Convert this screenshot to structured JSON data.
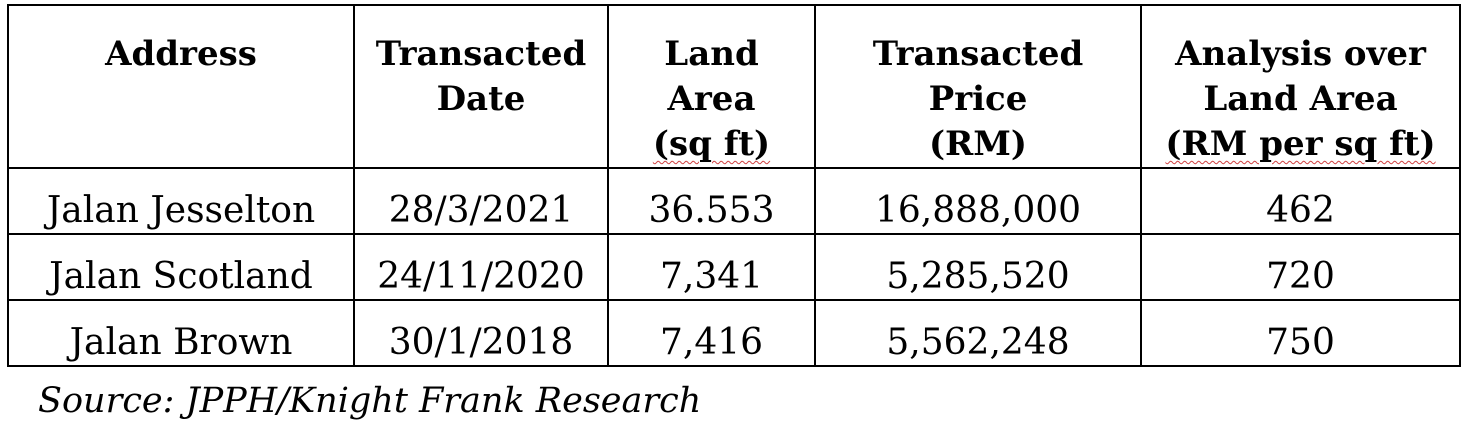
{
  "table": {
    "headers": [
      [
        "Address"
      ],
      [
        "Transacted",
        "Date"
      ],
      [
        "Land",
        "Area",
        "(sq ft)"
      ],
      [
        "Transacted",
        "Price",
        "(RM)"
      ],
      [
        "Analysis over",
        "Land Area",
        "(RM per sq ft)"
      ]
    ],
    "rows": [
      [
        "Jalan Jesselton",
        "28/3/2021",
        "36.553",
        "16,888,000",
        "462"
      ],
      [
        "Jalan Scotland",
        "24/11/2020",
        "7,341",
        "5,285,520",
        "720"
      ],
      [
        "Jalan Brown",
        "30/1/2018",
        "7,416",
        "5,562,248",
        "750"
      ]
    ]
  },
  "source": "Source: JPPH/Knight Frank Research"
}
